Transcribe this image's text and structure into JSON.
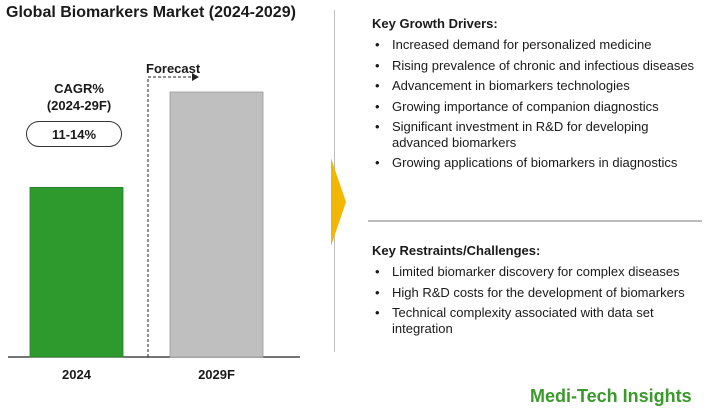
{
  "chart_data": {
    "type": "bar",
    "title": "Global Biomarkers Market (2024-2029)",
    "categories": [
      "2024",
      "2029F"
    ],
    "values": [
      0.64,
      1.0
    ],
    "value_note_scale": "relative",
    "colors": [
      "#2e9a2e",
      "#bfbfbf"
    ],
    "forecast_label": "Forecast",
    "cagr_label": "CAGR%\n(2024-29F)",
    "cagr_value": "11-14%"
  },
  "drivers": {
    "heading": "Key Growth Drivers:",
    "items": [
      "Increased demand for personalized medicine",
      "Rising prevalence of chronic and infectious diseases",
      "Advancement in biomarkers technologies",
      "Growing importance of companion diagnostics",
      "Significant investment in R&D for developing advanced biomarkers",
      "Growing applications of biomarkers in diagnostics"
    ]
  },
  "restraints": {
    "heading": "Key Restraints/Challenges:",
    "items": [
      "Limited biomarker discovery for complex diseases",
      "High R&D costs for the development of biomarkers",
      "Technical complexity associated with data set integration"
    ]
  },
  "bullet": "•",
  "brand": "Medi-Tech Insights",
  "accent": "#f2b705",
  "brand_color": "#3a9a2a"
}
